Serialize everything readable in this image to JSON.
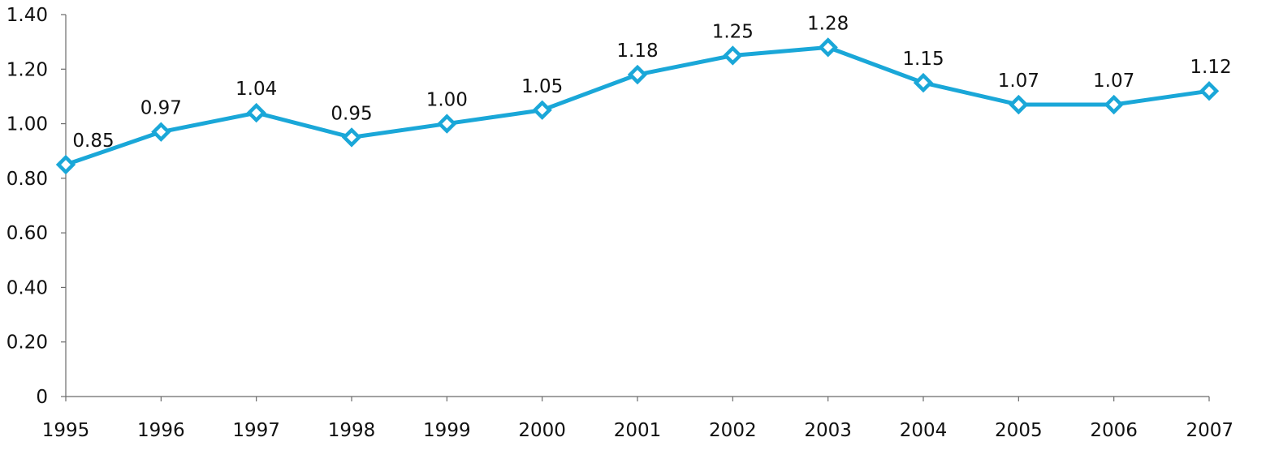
{
  "chart_data": {
    "type": "line",
    "title": "",
    "xlabel": "",
    "ylabel": "",
    "categories": [
      "1995",
      "1996",
      "1997",
      "1998",
      "1999",
      "2000",
      "2001",
      "2002",
      "2003",
      "2004",
      "2005",
      "2006",
      "2007"
    ],
    "series": [
      {
        "values": [
          0.85,
          0.97,
          1.04,
          0.95,
          1.0,
          1.05,
          1.18,
          1.25,
          1.28,
          1.15,
          1.07,
          1.07,
          1.12
        ],
        "labels": [
          "0.85",
          "0.97",
          "1.04",
          "0.95",
          "1.00",
          "1.05",
          "1.18",
          "1.25",
          "1.28",
          "1.15",
          "1.07",
          "1.07",
          "1.12"
        ],
        "color": "#1aa7d8",
        "marker": "diamond-open"
      }
    ],
    "ylim": [
      0,
      1.4
    ],
    "yticks": [
      0,
      0.2,
      0.4,
      0.6,
      0.8,
      1.0,
      1.2,
      1.4
    ],
    "ytick_labels": [
      "0",
      "0.20",
      "0.40",
      "0.60",
      "0.80",
      "1.00",
      "1.20",
      "1.40"
    ],
    "grid": false,
    "legend": "none"
  }
}
